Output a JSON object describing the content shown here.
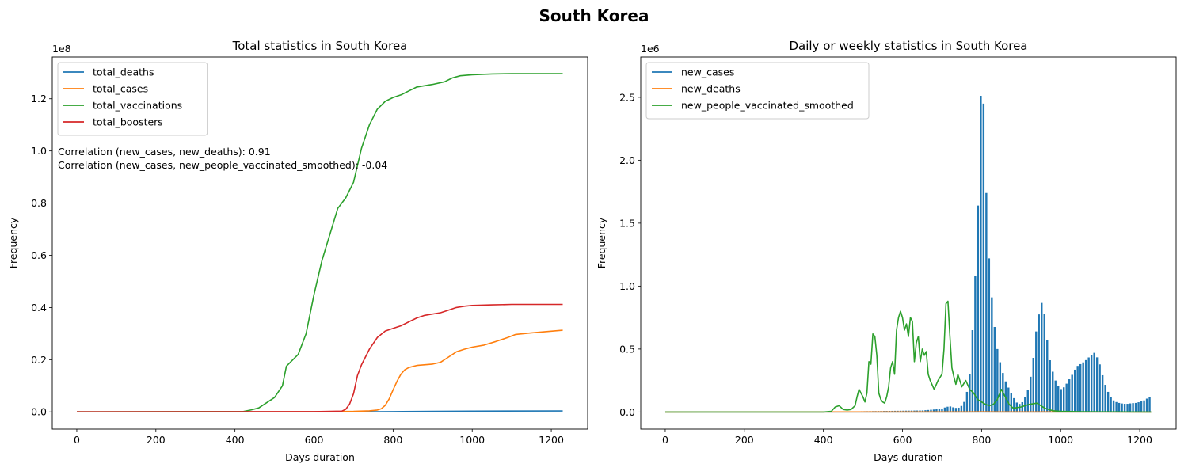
{
  "suptitle": "South Korea",
  "colors": {
    "blue": "#1f77b4",
    "orange": "#ff7f0e",
    "green": "#2ca02c",
    "red": "#d62728"
  },
  "chart_data": [
    {
      "type": "line",
      "title": "Total statistics in South Korea",
      "xlabel": "Days duration",
      "ylabel": "Frequency",
      "y_multiplier": "1e8",
      "xlim": [
        -62,
        1292
      ],
      "ylim": [
        -0.066,
        1.36
      ],
      "xticks": [
        0,
        200,
        400,
        600,
        800,
        1000,
        1200
      ],
      "yticks": [
        0.0,
        0.2,
        0.4,
        0.6,
        0.8,
        1.0,
        1.2
      ],
      "legend_position": "top-left",
      "annotations": [
        "Correlation (new_cases, new_deaths): 0.91",
        "Correlation (new_cases, new_people_vaccinated_smoothed): -0.04"
      ],
      "series": [
        {
          "name": "total_deaths",
          "color": "#1f77b4",
          "x": [
            0,
            400,
            600,
            750,
            800,
            900,
            1000,
            1229
          ],
          "y": [
            0,
            0,
            0.0005,
            0.0007,
            0.0012,
            0.0024,
            0.003,
            0.0035
          ]
        },
        {
          "name": "total_cases",
          "color": "#ff7f0e",
          "x": [
            0,
            400,
            600,
            700,
            740,
            760,
            770,
            780,
            790,
            800,
            810,
            820,
            830,
            840,
            860,
            900,
            920,
            940,
            960,
            980,
            1000,
            1030,
            1060,
            1090,
            1110,
            1150,
            1229
          ],
          "y": [
            0,
            0.0001,
            0.0006,
            0.002,
            0.004,
            0.007,
            0.012,
            0.025,
            0.05,
            0.085,
            0.118,
            0.145,
            0.162,
            0.17,
            0.178,
            0.183,
            0.19,
            0.21,
            0.23,
            0.24,
            0.248,
            0.256,
            0.27,
            0.285,
            0.297,
            0.303,
            0.313
          ]
        },
        {
          "name": "total_vaccinations",
          "color": "#2ca02c",
          "x": [
            0,
            420,
            440,
            460,
            480,
            500,
            520,
            530,
            540,
            560,
            580,
            600,
            620,
            630,
            640,
            660,
            680,
            700,
            720,
            740,
            760,
            780,
            800,
            820,
            840,
            860,
            900,
            930,
            950,
            970,
            1000,
            1050,
            1100,
            1229
          ],
          "y": [
            0,
            0.001,
            0.007,
            0.015,
            0.035,
            0.055,
            0.1,
            0.175,
            0.19,
            0.22,
            0.3,
            0.45,
            0.58,
            0.63,
            0.68,
            0.78,
            0.82,
            0.88,
            1.01,
            1.1,
            1.16,
            1.19,
            1.205,
            1.215,
            1.23,
            1.245,
            1.255,
            1.265,
            1.28,
            1.288,
            1.292,
            1.295,
            1.296,
            1.296
          ]
        },
        {
          "name": "total_boosters",
          "color": "#d62728",
          "x": [
            0,
            600,
            670,
            680,
            690,
            700,
            710,
            720,
            740,
            760,
            780,
            800,
            820,
            840,
            860,
            880,
            920,
            940,
            960,
            980,
            1000,
            1050,
            1100,
            1229
          ],
          "y": [
            0,
            0.001,
            0.003,
            0.01,
            0.03,
            0.07,
            0.14,
            0.18,
            0.24,
            0.285,
            0.31,
            0.32,
            0.33,
            0.345,
            0.36,
            0.37,
            0.38,
            0.39,
            0.4,
            0.405,
            0.408,
            0.41,
            0.412,
            0.412
          ]
        }
      ]
    },
    {
      "type": "line",
      "title": "Daily or weekly statistics in South Korea",
      "xlabel": "Days duration",
      "ylabel": "Frequency",
      "y_multiplier": "1e6",
      "xlim": [
        -62,
        1292
      ],
      "ylim": [
        -0.136,
        2.82
      ],
      "xticks": [
        0,
        200,
        400,
        600,
        800,
        1000,
        1200
      ],
      "yticks": [
        0.0,
        0.5,
        1.0,
        1.5,
        2.0,
        2.5
      ],
      "legend_position": "top-left",
      "series": [
        {
          "name": "new_cases",
          "color": "#1f77b4",
          "x": [
            350,
            400,
            450,
            500,
            550,
            600,
            650,
            700,
            710,
            720,
            730,
            740,
            750,
            760,
            770,
            780,
            790,
            795,
            800,
            805,
            810,
            815,
            820,
            830,
            840,
            850,
            860,
            870,
            880,
            890,
            900,
            910,
            920,
            930,
            940,
            950,
            955,
            960,
            965,
            970,
            980,
            990,
            1000,
            1010,
            1020,
            1030,
            1040,
            1050,
            1060,
            1070,
            1080,
            1085,
            1090,
            1100,
            1110,
            1120,
            1130,
            1140,
            1150,
            1160,
            1170,
            1180,
            1190,
            1200,
            1210,
            1220,
            1229
          ],
          "y": [
            0.003,
            0.005,
            0.004,
            0.006,
            0.008,
            0.01,
            0.012,
            0.025,
            0.04,
            0.045,
            0.035,
            0.03,
            0.05,
            0.1,
            0.3,
            0.8,
            1.5,
            2.2,
            2.72,
            2.45,
            1.9,
            1.5,
            1.15,
            0.75,
            0.5,
            0.35,
            0.25,
            0.18,
            0.12,
            0.07,
            0.06,
            0.12,
            0.2,
            0.4,
            0.7,
            0.85,
            0.89,
            0.75,
            0.6,
            0.45,
            0.32,
            0.22,
            0.18,
            0.2,
            0.25,
            0.3,
            0.36,
            0.38,
            0.4,
            0.43,
            0.46,
            0.47,
            0.45,
            0.37,
            0.24,
            0.16,
            0.1,
            0.08,
            0.07,
            0.065,
            0.065,
            0.07,
            0.072,
            0.08,
            0.09,
            0.11,
            0.13
          ]
        },
        {
          "name": "new_deaths",
          "color": "#ff7f0e",
          "x": [
            0,
            700,
            760,
            800,
            840,
            900,
            960,
            1000,
            1229
          ],
          "y": [
            0,
            0.0002,
            0.0005,
            0.0009,
            0.0007,
            0.0004,
            0.0004,
            0.0002,
            0.0001
          ]
        },
        {
          "name": "new_people_vaccinated_smoothed",
          "color": "#2ca02c",
          "x": [
            0,
            400,
            420,
            430,
            440,
            450,
            460,
            470,
            480,
            485,
            490,
            500,
            505,
            510,
            515,
            520,
            525,
            530,
            535,
            540,
            545,
            550,
            555,
            560,
            565,
            570,
            575,
            580,
            585,
            590,
            595,
            600,
            605,
            610,
            615,
            620,
            625,
            630,
            635,
            640,
            645,
            650,
            655,
            660,
            665,
            670,
            680,
            690,
            700,
            705,
            710,
            715,
            720,
            725,
            730,
            735,
            740,
            750,
            760,
            770,
            780,
            790,
            800,
            810,
            820,
            830,
            840,
            850,
            860,
            870,
            880,
            900,
            920,
            940,
            960,
            980,
            1000,
            1050,
            1100,
            1229
          ],
          "y": [
            0,
            0.0,
            0.005,
            0.04,
            0.05,
            0.02,
            0.015,
            0.02,
            0.05,
            0.12,
            0.18,
            0.12,
            0.08,
            0.15,
            0.4,
            0.38,
            0.62,
            0.6,
            0.45,
            0.15,
            0.1,
            0.08,
            0.07,
            0.12,
            0.2,
            0.35,
            0.4,
            0.3,
            0.65,
            0.75,
            0.8,
            0.75,
            0.65,
            0.7,
            0.6,
            0.75,
            0.72,
            0.4,
            0.55,
            0.6,
            0.4,
            0.5,
            0.45,
            0.48,
            0.3,
            0.25,
            0.18,
            0.25,
            0.3,
            0.5,
            0.86,
            0.88,
            0.6,
            0.35,
            0.28,
            0.22,
            0.3,
            0.2,
            0.25,
            0.18,
            0.15,
            0.1,
            0.08,
            0.06,
            0.05,
            0.06,
            0.1,
            0.18,
            0.12,
            0.06,
            0.03,
            0.04,
            0.06,
            0.07,
            0.03,
            0.01,
            0.005,
            0.002,
            0.001,
            0.0
          ]
        }
      ]
    }
  ]
}
